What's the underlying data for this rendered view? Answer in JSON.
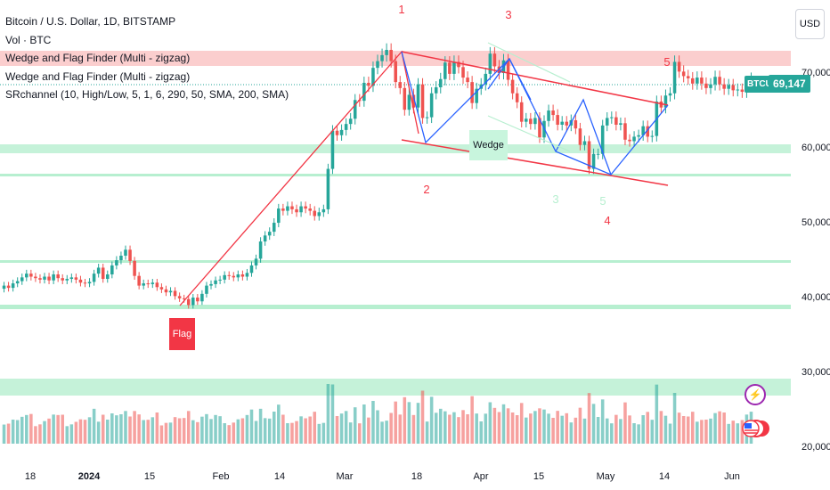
{
  "legend": {
    "title": "Bitcoin / U.S. Dollar, 1D, BITSTAMP",
    "vol": "Vol · BTC",
    "indicator1": "Wedge and Flag Finder (Multi - zigzag)",
    "indicator2": "Wedge and Flag Finder (Multi - zigzag)",
    "indicator3": "SRchannel (10, High/Low, 5, 1, 6, 290, 50, SMA, 200, SMA)"
  },
  "currency": "USD",
  "price_tag": "69,147",
  "ticker_tag": "BTCUSD",
  "pattern_labels": {
    "flag": "Flag",
    "wedge": "Wedge"
  },
  "icons": {
    "lightning": "lightning-icon",
    "flag": "us-flag-icon"
  },
  "colors": {
    "up": "#26a69a",
    "down": "#ef5350",
    "pattern": "#f23645",
    "zigzag": "#2962ff",
    "sr": "#2ebd85"
  },
  "chart_data": {
    "type": "candlestick",
    "symbol": "BTCUSD",
    "interval": "1D",
    "ylim": [
      18000,
      78000
    ],
    "y_ticks": [
      "20,000",
      "30,000",
      "40,000",
      "50,000",
      "60,000",
      "70,000"
    ],
    "x_ticks": [
      "18",
      "2024",
      "15",
      "Feb",
      "14",
      "Mar",
      "18",
      "Apr",
      "15",
      "May",
      "14",
      "Jun"
    ],
    "last_price": 69147,
    "wave_labels": [
      "1",
      "2",
      "3",
      "4",
      "5",
      "3",
      "5"
    ],
    "closes": [
      41500,
      41200,
      41800,
      42100,
      42600,
      43100,
      42700,
      42500,
      42300,
      42700,
      42200,
      43000,
      42500,
      42200,
      42400,
      42600,
      42300,
      41900,
      41800,
      42000,
      43100,
      43900,
      42400,
      43000,
      44200,
      44900,
      45500,
      46300,
      44800,
      42800,
      41500,
      41800,
      41700,
      41900,
      41300,
      41000,
      40600,
      40800,
      40100,
      39800,
      39700,
      38900,
      39900,
      39400,
      40400,
      41500,
      41700,
      42200,
      42300,
      42900,
      42800,
      42600,
      43000,
      42700,
      43200,
      44200,
      45100,
      47400,
      48200,
      48700,
      49900,
      51800,
      51500,
      52100,
      51700,
      51300,
      52100,
      51800,
      51500,
      50800,
      51300,
      51700,
      57100,
      62200,
      61600,
      62300,
      63100,
      63800,
      66300,
      66200,
      68600,
      68200,
      70600,
      71500,
      72300,
      73000,
      71500,
      68700,
      67900,
      65000,
      67000,
      65300,
      68400,
      63900,
      64000,
      67200,
      68000,
      69100,
      71300,
      69800,
      71400,
      70700,
      69300,
      68700,
      65900,
      67800,
      68400,
      69800,
      72500,
      70800,
      69900,
      71600,
      69000,
      67200,
      66000,
      63400,
      63800,
      63100,
      63900,
      61300,
      63500,
      64900,
      64300,
      63000,
      63400,
      62900,
      63600,
      62500,
      60300,
      60800,
      57100,
      59100,
      59100,
      62900,
      63900,
      64000,
      63000,
      63200,
      61000,
      60800,
      61400,
      61600,
      62800,
      61400,
      61500,
      66100,
      65300,
      66900,
      67200,
      71400,
      70100,
      69500,
      69200,
      68500,
      69300,
      68500,
      67900,
      68400,
      69400,
      68400,
      67800,
      68300,
      67600,
      67700,
      67400,
      68200,
      69147
    ]
  }
}
